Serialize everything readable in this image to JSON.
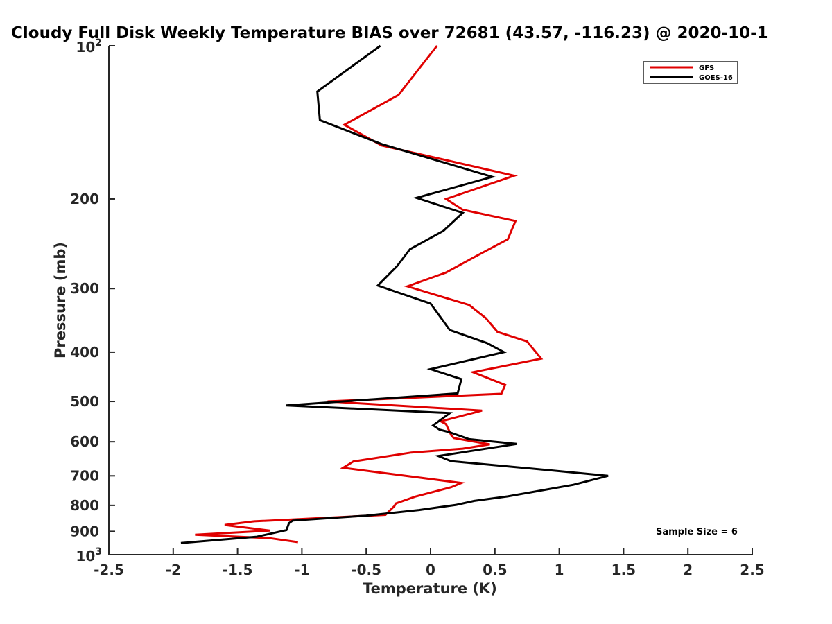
{
  "chart_data": {
    "type": "line",
    "title": "Cloudy Full Disk Weekly Temperature BIAS over 72681 (43.57, -116.23) @ 2020-10-1",
    "xlabel": "Temperature (K)",
    "ylabel": "Pressure (mb)",
    "xlim": [
      -2.5,
      2.5
    ],
    "ylim": [
      100,
      1000
    ],
    "y_scale": "log",
    "y_reversed": true,
    "grid": false,
    "legend_position": "top-right",
    "x_ticks": [
      "-2.5",
      "-2",
      "-1.5",
      "-1",
      "-0.5",
      "0",
      "0.5",
      "1",
      "1.5",
      "2",
      "2.5"
    ],
    "y_ticks": [
      {
        "value": 100,
        "base": "10",
        "exp": "2"
      },
      {
        "value": 200,
        "label": "200"
      },
      {
        "value": 300,
        "label": "300"
      },
      {
        "value": 400,
        "label": "400"
      },
      {
        "value": 500,
        "label": "500"
      },
      {
        "value": 600,
        "label": "600"
      },
      {
        "value": 700,
        "label": "700"
      },
      {
        "value": 800,
        "label": "800"
      },
      {
        "value": 900,
        "label": "900"
      },
      {
        "value": 1000,
        "base": "10",
        "exp": "3"
      }
    ],
    "annotation": "Sample Size = 6",
    "series": [
      {
        "name": "GFS",
        "color": "#e00000",
        "points": [
          [
            0.05,
            100
          ],
          [
            -0.25,
            125
          ],
          [
            -0.67,
            143
          ],
          [
            -0.38,
            157
          ],
          [
            0.65,
            180
          ],
          [
            0.12,
            200
          ],
          [
            0.25,
            210
          ],
          [
            0.66,
            221
          ],
          [
            0.6,
            240
          ],
          [
            0.33,
            261
          ],
          [
            0.12,
            279
          ],
          [
            -0.18,
            297
          ],
          [
            0.3,
            323
          ],
          [
            0.43,
            343
          ],
          [
            0.52,
            365
          ],
          [
            0.75,
            381
          ],
          [
            0.86,
            412
          ],
          [
            0.33,
            438
          ],
          [
            0.58,
            464
          ],
          [
            0.55,
            483
          ],
          [
            -0.8,
            500
          ],
          [
            0.4,
            521
          ],
          [
            0.08,
            547
          ],
          [
            0.12,
            554
          ],
          [
            0.16,
            582
          ],
          [
            0.18,
            590
          ],
          [
            0.46,
            607
          ],
          [
            0.25,
            619
          ],
          [
            -0.15,
            630
          ],
          [
            -0.6,
            656
          ],
          [
            -0.68,
            675
          ],
          [
            0.24,
            723
          ],
          [
            0.16,
            737
          ],
          [
            -0.12,
            769
          ],
          [
            -0.27,
            793
          ],
          [
            -0.28,
            802
          ],
          [
            -0.35,
            835
          ],
          [
            -1.37,
            860
          ],
          [
            -1.6,
            874
          ],
          [
            -1.25,
            897
          ],
          [
            -1.83,
            914
          ],
          [
            -1.25,
            928
          ],
          [
            -1.03,
            945
          ]
        ]
      },
      {
        "name": "GOES-16",
        "color": "#000000",
        "points": [
          [
            -0.39,
            100
          ],
          [
            -0.88,
            123
          ],
          [
            -0.86,
            140
          ],
          [
            -0.38,
            156
          ],
          [
            0.48,
            181
          ],
          [
            -0.11,
            199
          ],
          [
            0.25,
            213
          ],
          [
            0.1,
            231
          ],
          [
            -0.16,
            251
          ],
          [
            -0.26,
            271
          ],
          [
            -0.41,
            296
          ],
          [
            0.0,
            321
          ],
          [
            0.15,
            362
          ],
          [
            0.44,
            384
          ],
          [
            0.57,
            400
          ],
          [
            0.0,
            432
          ],
          [
            0.24,
            452
          ],
          [
            0.21,
            482
          ],
          [
            -1.12,
            509
          ],
          [
            0.15,
            527
          ],
          [
            0.02,
            557
          ],
          [
            0.07,
            568
          ],
          [
            0.14,
            574
          ],
          [
            0.3,
            593
          ],
          [
            0.67,
            606
          ],
          [
            0.06,
            640
          ],
          [
            0.16,
            655
          ],
          [
            0.94,
            683
          ],
          [
            1.38,
            700
          ],
          [
            1.11,
            729
          ],
          [
            0.6,
            768
          ],
          [
            0.34,
            784
          ],
          [
            0.2,
            798
          ],
          [
            -0.09,
            817
          ],
          [
            -0.5,
            838
          ],
          [
            -1.07,
            857
          ],
          [
            -1.1,
            867
          ],
          [
            -1.12,
            895
          ],
          [
            -1.35,
            922
          ],
          [
            -1.94,
            949
          ]
        ]
      }
    ]
  }
}
